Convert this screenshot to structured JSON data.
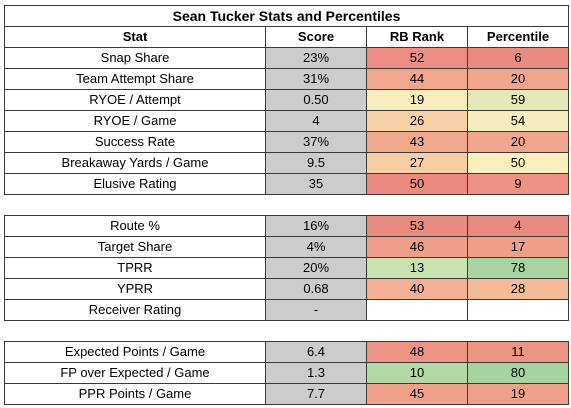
{
  "title": "Sean Tucker Stats and Percentiles",
  "headers": {
    "stat": "Stat",
    "score": "Score",
    "rank": "RB Rank",
    "pct": "Percentile"
  },
  "sections": [
    [
      {
        "stat": "Snap Share",
        "score": "23%",
        "rank": "52",
        "pct": "6",
        "rank_color": "#ec8c82",
        "pct_color": "#ea8b80"
      },
      {
        "stat": "Team Attempt Share",
        "score": "31%",
        "rank": "44",
        "pct": "20",
        "rank_color": "#f1a78d",
        "pct_color": "#f0a68c"
      },
      {
        "stat": "RYOE / Attempt",
        "score": "0.50",
        "rank": "19",
        "pct": "59",
        "rank_color": "#f7edbd",
        "pct_color": "#e7e8b9"
      },
      {
        "stat": "RYOE / Game",
        "score": "4",
        "rank": "26",
        "pct": "54",
        "rank_color": "#f9d1a6",
        "pct_color": "#f5edbd"
      },
      {
        "stat": "Success Rate",
        "score": "37%",
        "rank": "43",
        "pct": "20",
        "rank_color": "#f2a88d",
        "pct_color": "#f0a68c"
      },
      {
        "stat": "Breakaway Yards / Game",
        "score": "9.5",
        "rank": "27",
        "pct": "50",
        "rank_color": "#f8cfa4",
        "pct_color": "#fbefbe"
      },
      {
        "stat": "Elusive Rating",
        "score": "35",
        "rank": "50",
        "pct": "9",
        "rank_color": "#ec8a80",
        "pct_color": "#ec9383"
      }
    ],
    [
      {
        "stat": "Route %",
        "score": "16%",
        "rank": "53",
        "pct": "4",
        "rank_color": "#ea8b80",
        "pct_color": "#e98a80"
      },
      {
        "stat": "Target Share",
        "score": "4%",
        "rank": "46",
        "pct": "17",
        "rank_color": "#ef9f89",
        "pct_color": "#ef9e88"
      },
      {
        "stat": "TPRR",
        "score": "20%",
        "rank": "13",
        "pct": "78",
        "rank_color": "#c8e2b0",
        "pct_color": "#a6d5a2"
      },
      {
        "stat": "YPRR",
        "score": "0.68",
        "rank": "40",
        "pct": "28",
        "rank_color": "#f3b095",
        "pct_color": "#f4bb99"
      },
      {
        "stat": "Receiver Rating",
        "score": "-",
        "rank": "",
        "pct": "",
        "rank_color": "#ffffff",
        "pct_color": "#ffffff"
      }
    ],
    [
      {
        "stat": "Expected Points / Game",
        "score": "6.4",
        "rank": "48",
        "pct": "11",
        "rank_color": "#ee9484",
        "pct_color": "#ec9584"
      },
      {
        "stat": "FP over Expected / Game",
        "score": "1.3",
        "rank": "10",
        "pct": "80",
        "rank_color": "#b2d9a5",
        "pct_color": "#a5d4a0"
      },
      {
        "stat": "PPR Points / Game",
        "score": "7.7",
        "rank": "45",
        "pct": "19",
        "rank_color": "#f0a18a",
        "pct_color": "#efa08a"
      }
    ]
  ]
}
